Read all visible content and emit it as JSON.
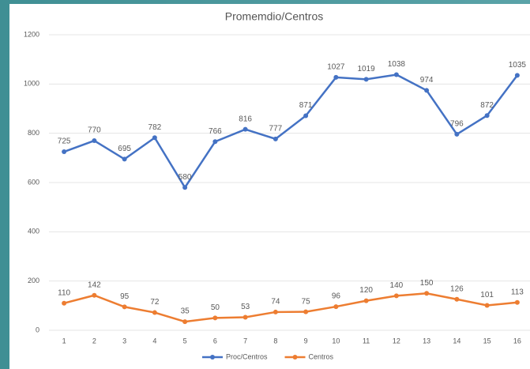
{
  "chart_data": {
    "type": "line",
    "title": "Promemdio/Centros",
    "categories": [
      "1",
      "2",
      "3",
      "4",
      "5",
      "6",
      "7",
      "8",
      "9",
      "10",
      "11",
      "12",
      "13",
      "14",
      "15",
      "16"
    ],
    "series": [
      {
        "name": "Proc/Centros",
        "color": "#4472c4",
        "values": [
          725,
          770,
          695,
          782,
          580,
          766,
          816,
          777,
          871,
          1027,
          1019,
          1038,
          974,
          796,
          872,
          1035
        ]
      },
      {
        "name": "Centros",
        "color": "#ed7d31",
        "values": [
          110,
          142,
          95,
          72,
          35,
          50,
          53,
          74,
          75,
          96,
          120,
          140,
          150,
          126,
          101,
          113
        ]
      }
    ],
    "ylim": [
      0,
      1200
    ],
    "yticks": [
      0,
      200,
      400,
      600,
      800,
      1000,
      1200
    ],
    "grid": true,
    "legend": "bottom"
  }
}
